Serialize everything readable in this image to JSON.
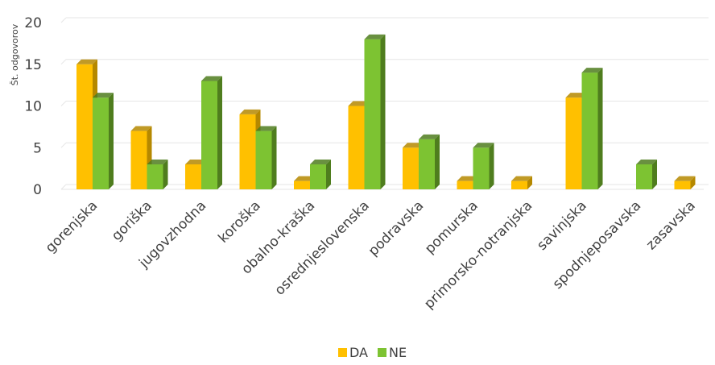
{
  "chart_data": {
    "type": "bar",
    "ylabel": "Št. odgovorov",
    "ylim": [
      0,
      20
    ],
    "yticks": [
      0,
      5,
      10,
      15,
      20
    ],
    "grid": true,
    "legend_position": "bottom",
    "categories": [
      "gorenjska",
      "goriška",
      "jugovzhodna",
      "koroška",
      "obalno-kraška",
      "osrednjeslovenska",
      "podravska",
      "pomurska",
      "primorsko-notranjska",
      "savinjska",
      "spodnjeposavska",
      "zasavska"
    ],
    "series": [
      {
        "name": "DA",
        "color": "#ffc000",
        "side": "#b58800",
        "top": "#ffd24d",
        "values": [
          15,
          7,
          3,
          9,
          1,
          10,
          5,
          1,
          1,
          11,
          0,
          1
        ]
      },
      {
        "name": "NE",
        "color": "#7dc332",
        "side": "#4f7d1e",
        "top": "#9fd85e",
        "values": [
          11,
          3,
          13,
          7,
          3,
          18,
          6,
          5,
          0,
          14,
          3,
          0
        ]
      }
    ]
  }
}
